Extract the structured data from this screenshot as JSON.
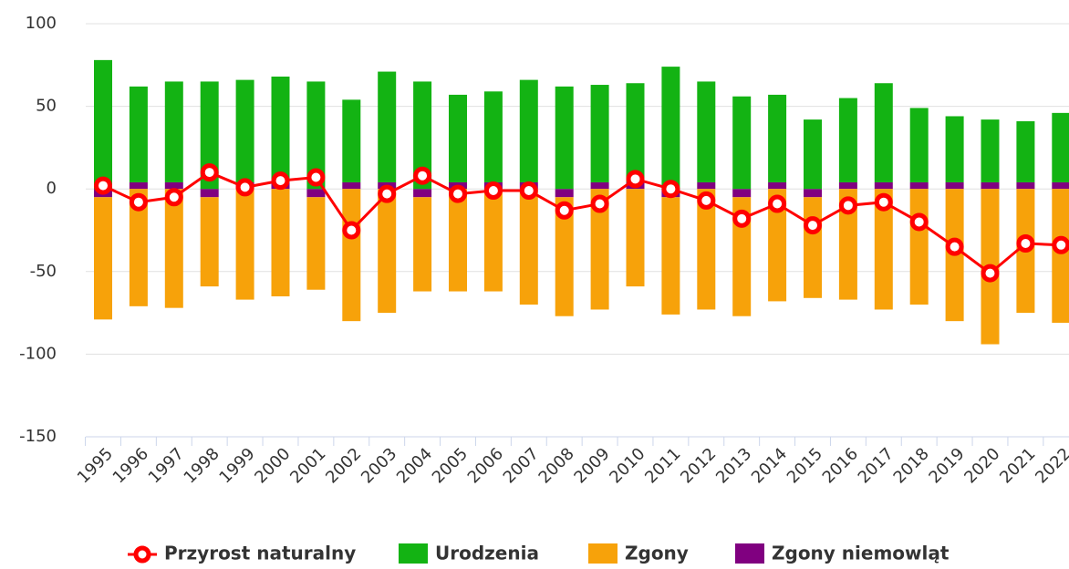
{
  "chart_data": {
    "type": "bar",
    "categories": [
      "1995",
      "1996",
      "1997",
      "1998",
      "1999",
      "2000",
      "2001",
      "2002",
      "2003",
      "2004",
      "2005",
      "2006",
      "2007",
      "2008",
      "2009",
      "2010",
      "2011",
      "2012",
      "2013",
      "2014",
      "2015",
      "2016",
      "2017",
      "2018",
      "2019",
      "2020",
      "2021",
      "2022"
    ],
    "series": [
      {
        "name": "Przyrost naturalny",
        "type": "line",
        "color": "#ff0000",
        "values": [
          2,
          -8,
          -5,
          10,
          1,
          5,
          7,
          -25,
          -3,
          8,
          -3,
          -1,
          -1,
          -13,
          -9,
          6,
          0,
          -7,
          -18,
          -9,
          -22,
          -10,
          -8,
          -20,
          -35,
          -51,
          -33,
          -34
        ]
      },
      {
        "name": "Urodzenia",
        "color": "#13b313",
        "values": [
          78,
          58,
          61,
          65,
          62,
          64,
          65,
          50,
          67,
          65,
          53,
          55,
          62,
          62,
          59,
          60,
          74,
          61,
          56,
          53,
          42,
          51,
          60,
          45,
          40,
          38,
          37,
          42
        ]
      },
      {
        "name": "Zgony",
        "color": "#f7a20a",
        "values": [
          -74,
          -71,
          -72,
          -54,
          -67,
          -65,
          -56,
          -80,
          -75,
          -57,
          -62,
          -62,
          -70,
          -72,
          -73,
          -59,
          -71,
          -73,
          -72,
          -68,
          -61,
          -67,
          -73,
          -70,
          -80,
          -94,
          -75,
          -81
        ]
      },
      {
        "name": "Zgony niemowląt",
        "color": "#800080",
        "values": [
          -5,
          4,
          4,
          -5,
          4,
          4,
          -5,
          4,
          4,
          -5,
          4,
          4,
          4,
          -5,
          4,
          4,
          -5,
          4,
          -5,
          4,
          -5,
          4,
          4,
          4,
          4,
          4,
          4,
          4
        ]
      }
    ],
    "ylim": [
      -150,
      100
    ],
    "yticks": [
      -150,
      -100,
      -50,
      0,
      50,
      100
    ],
    "grid": true
  }
}
